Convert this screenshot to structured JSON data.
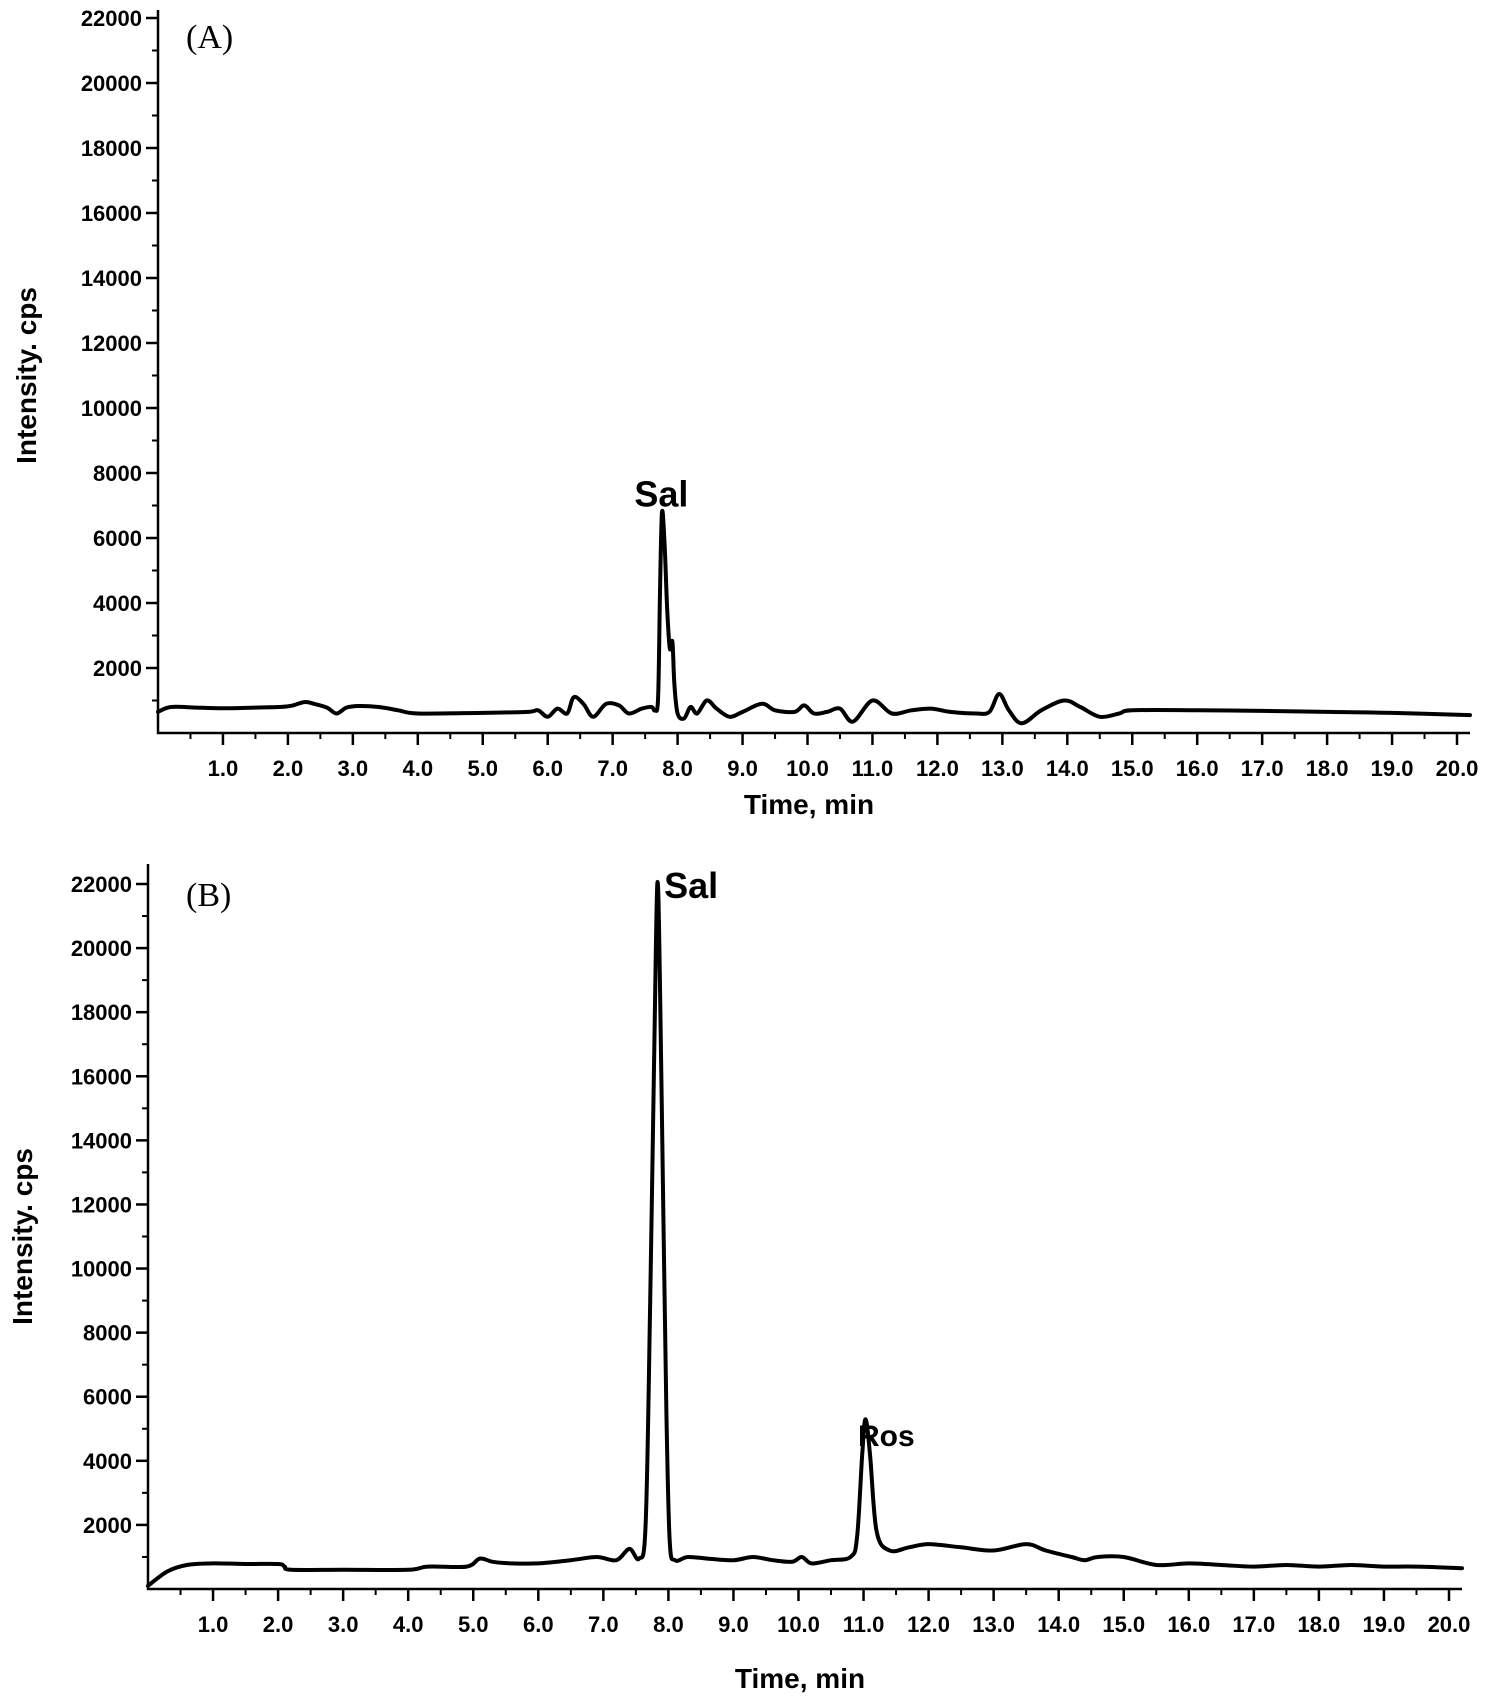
{
  "chart_data": [
    {
      "type": "line",
      "panel_label": "(A)",
      "xlabel": "Time, min",
      "ylabel": "Intensity. cps",
      "xlim": [
        0.0,
        20.2
      ],
      "ylim": [
        0,
        22000
      ],
      "x_ticks": [
        "1.0",
        "2.0",
        "3.0",
        "4.0",
        "5.0",
        "6.0",
        "7.0",
        "8.0",
        "9.0",
        "10.0",
        "11.0",
        "12.0",
        "13.0",
        "14.0",
        "15.0",
        "16.0",
        "17.0",
        "18.0",
        "19.0",
        "20.0"
      ],
      "y_ticks": [
        "2000",
        "4000",
        "6000",
        "8000",
        "10000",
        "12000",
        "14000",
        "16000",
        "18000",
        "20000",
        "22000"
      ],
      "annotations": [
        {
          "text": "Sal",
          "x": 7.75,
          "y": 7400
        }
      ],
      "series": [
        {
          "x": [
            0.0,
            0.2,
            0.6,
            1.0,
            1.5,
            2.0,
            2.25,
            2.4,
            2.6,
            2.75,
            2.9,
            3.1,
            3.4,
            3.7,
            4.0,
            5.0,
            5.7,
            5.85,
            6.0,
            6.15,
            6.3,
            6.4,
            6.55,
            6.7,
            6.9,
            7.1,
            7.25,
            7.45,
            7.6,
            7.65,
            7.7,
            7.73,
            7.76,
            7.8,
            7.84,
            7.88,
            7.92,
            7.95,
            8.0,
            8.1,
            8.2,
            8.3,
            8.45,
            8.6,
            8.8,
            9.0,
            9.3,
            9.5,
            9.8,
            9.95,
            10.1,
            10.3,
            10.5,
            10.7,
            11.0,
            11.3,
            11.6,
            11.9,
            12.2,
            12.6,
            12.8,
            12.95,
            13.1,
            13.3,
            13.6,
            13.95,
            14.2,
            14.5,
            14.8,
            15.0,
            16.0,
            17.0,
            18.0,
            19.0,
            20.2
          ],
          "y": [
            650,
            800,
            780,
            760,
            780,
            820,
            950,
            900,
            780,
            600,
            780,
            830,
            800,
            700,
            600,
            620,
            650,
            700,
            500,
            750,
            600,
            1100,
            900,
            500,
            900,
            850,
            600,
            750,
            800,
            700,
            1100,
            4500,
            6800,
            5800,
            3800,
            2600,
            2800,
            1500,
            600,
            450,
            800,
            600,
            1000,
            750,
            500,
            650,
            900,
            700,
            650,
            850,
            600,
            650,
            750,
            350,
            1000,
            600,
            700,
            750,
            650,
            600,
            650,
            1200,
            700,
            300,
            700,
            1000,
            800,
            500,
            600,
            700,
            700,
            680,
            650,
            620,
            550
          ]
        }
      ]
    },
    {
      "type": "line",
      "panel_label": "(B)",
      "xlabel": "Time, min",
      "ylabel": "Intensity. cps",
      "xlim": [
        0.0,
        20.2
      ],
      "ylim": [
        0,
        22000
      ],
      "x_ticks": [
        "1.0",
        "2.0",
        "3.0",
        "4.0",
        "5.0",
        "6.0",
        "7.0",
        "8.0",
        "9.0",
        "10.0",
        "11.0",
        "12.0",
        "13.0",
        "14.0",
        "15.0",
        "16.0",
        "17.0",
        "18.0",
        "19.0",
        "20.0"
      ],
      "y_ticks": [
        "2000",
        "4000",
        "6000",
        "8000",
        "10000",
        "12000",
        "14000",
        "16000",
        "18000",
        "20000",
        "22000"
      ],
      "annotations": [
        {
          "text": "Sal",
          "x": 8.35,
          "y": 22000
        },
        {
          "text": "Ros",
          "x": 11.35,
          "y": 4900
        }
      ],
      "series": [
        {
          "x": [
            0.0,
            0.3,
            0.6,
            1.0,
            1.5,
            2.0,
            2.1,
            2.2,
            3.0,
            4.0,
            4.3,
            4.9,
            5.1,
            5.3,
            5.6,
            6.0,
            6.5,
            6.9,
            7.2,
            7.4,
            7.55,
            7.65,
            7.72,
            7.78,
            7.83,
            7.87,
            7.92,
            7.97,
            8.02,
            8.1,
            8.3,
            8.6,
            9.0,
            9.3,
            9.6,
            9.9,
            10.05,
            10.2,
            10.5,
            10.8,
            10.9,
            10.98,
            11.03,
            11.1,
            11.2,
            11.4,
            11.7,
            12.0,
            12.5,
            13.0,
            13.5,
            13.8,
            14.2,
            14.4,
            14.6,
            15.0,
            15.5,
            16.0,
            16.5,
            17.0,
            17.5,
            18.0,
            18.5,
            19.0,
            19.5,
            20.2
          ],
          "y": [
            100,
            550,
            750,
            800,
            780,
            780,
            700,
            600,
            600,
            600,
            700,
            700,
            950,
            850,
            800,
            800,
            900,
            1000,
            900,
            1250,
            950,
            2000,
            9000,
            16500,
            22000,
            19000,
            12000,
            5500,
            1500,
            900,
            1000,
            950,
            900,
            1000,
            900,
            850,
            1000,
            800,
            900,
            1000,
            1600,
            4200,
            5300,
            4200,
            1800,
            1200,
            1300,
            1400,
            1300,
            1200,
            1400,
            1200,
            1000,
            900,
            1000,
            1000,
            750,
            800,
            750,
            700,
            750,
            700,
            750,
            700,
            700,
            650
          ]
        }
      ]
    }
  ]
}
